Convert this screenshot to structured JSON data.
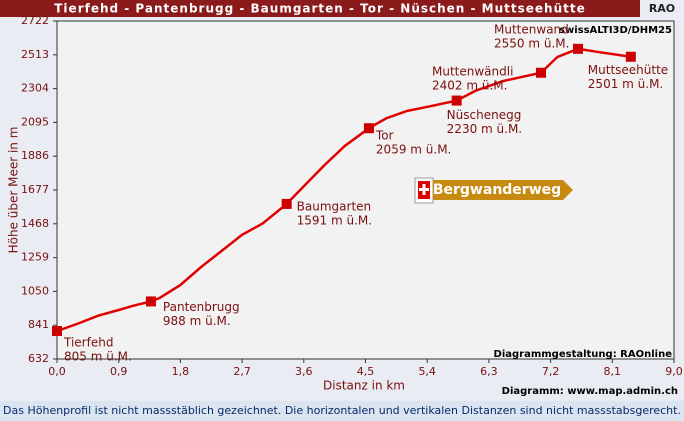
{
  "header": {
    "title": "Tierfehd - Pantenbrugg - Baumgarten - Tor - Nüschen - Muttseehütte",
    "badge": "RAO"
  },
  "chart_data": {
    "type": "line",
    "ylabel": "Höhe über Meer in m",
    "xlabel": "Distanz in km",
    "xlim": [
      0,
      9
    ],
    "ylim": [
      632,
      2722
    ],
    "xticks": [
      {
        "value": 0,
        "label": "0,0"
      },
      {
        "value": 0.9,
        "label": "0,9"
      },
      {
        "value": 1.8,
        "label": "1,8"
      },
      {
        "value": 2.7,
        "label": "2,7"
      },
      {
        "value": 3.6,
        "label": "3,6"
      },
      {
        "value": 4.5,
        "label": "4,5"
      },
      {
        "value": 5.4,
        "label": "5,4"
      },
      {
        "value": 6.3,
        "label": "6,3"
      },
      {
        "value": 7.2,
        "label": "7,2"
      },
      {
        "value": 8.1,
        "label": "8,1"
      },
      {
        "value": 9,
        "label": "9,0"
      }
    ],
    "yticks": [
      632,
      841,
      1050,
      1259,
      1468,
      1677,
      1886,
      2095,
      2304,
      2513,
      2722
    ],
    "profile": {
      "color": "#e00000",
      "x": [
        0,
        0.3,
        0.6,
        0.9,
        1.1,
        1.37,
        1.5,
        1.8,
        2.1,
        2.4,
        2.7,
        3.0,
        3.35,
        3.6,
        3.9,
        4.2,
        4.55,
        4.8,
        5.1,
        5.5,
        5.83,
        6.1,
        6.5,
        7.06,
        7.3,
        7.6,
        7.9,
        8.37
      ],
      "values": [
        805,
        850,
        900,
        935,
        960,
        988,
        1010,
        1090,
        1200,
        1300,
        1400,
        1470,
        1591,
        1700,
        1830,
        1950,
        2059,
        2120,
        2165,
        2200,
        2230,
        2290,
        2350,
        2402,
        2500,
        2550,
        2530,
        2501
      ]
    },
    "waypoints": {
      "color": "#cc0000",
      "names": [
        "Tierfehd",
        "Pantenbrugg",
        "Baumgarten",
        "Tor",
        "Nüschenegg",
        "Muttenwändli",
        "Muttenwand",
        "Muttseehütte"
      ],
      "x": [
        0,
        1.37,
        3.35,
        4.55,
        5.83,
        7.06,
        7.6,
        8.37
      ],
      "values": [
        805,
        988,
        1591,
        2059,
        2230,
        2402,
        2550,
        2501
      ],
      "value_labels": [
        "805 m ü.M.",
        "988 m ü.M.",
        "1591 m ü.M.",
        "2059 m ü.M.",
        "2230 m ü.M.",
        "2402 m ü.M.",
        "2550 m ü.M.",
        "2501 m ü.M."
      ]
    },
    "source": "swissALTI3D/DHM25",
    "sign": "Bergwanderweg",
    "credit_design": "Diagrammgestaltung: RAOnline",
    "credit_data": "Diagramm: www.map.admin.ch"
  },
  "footer": {
    "note": "Das Höhenprofil ist nicht massstäblich gezeichnet. Die horizontalen und vertikalen Distanzen sind nicht massstabsgerecht."
  }
}
